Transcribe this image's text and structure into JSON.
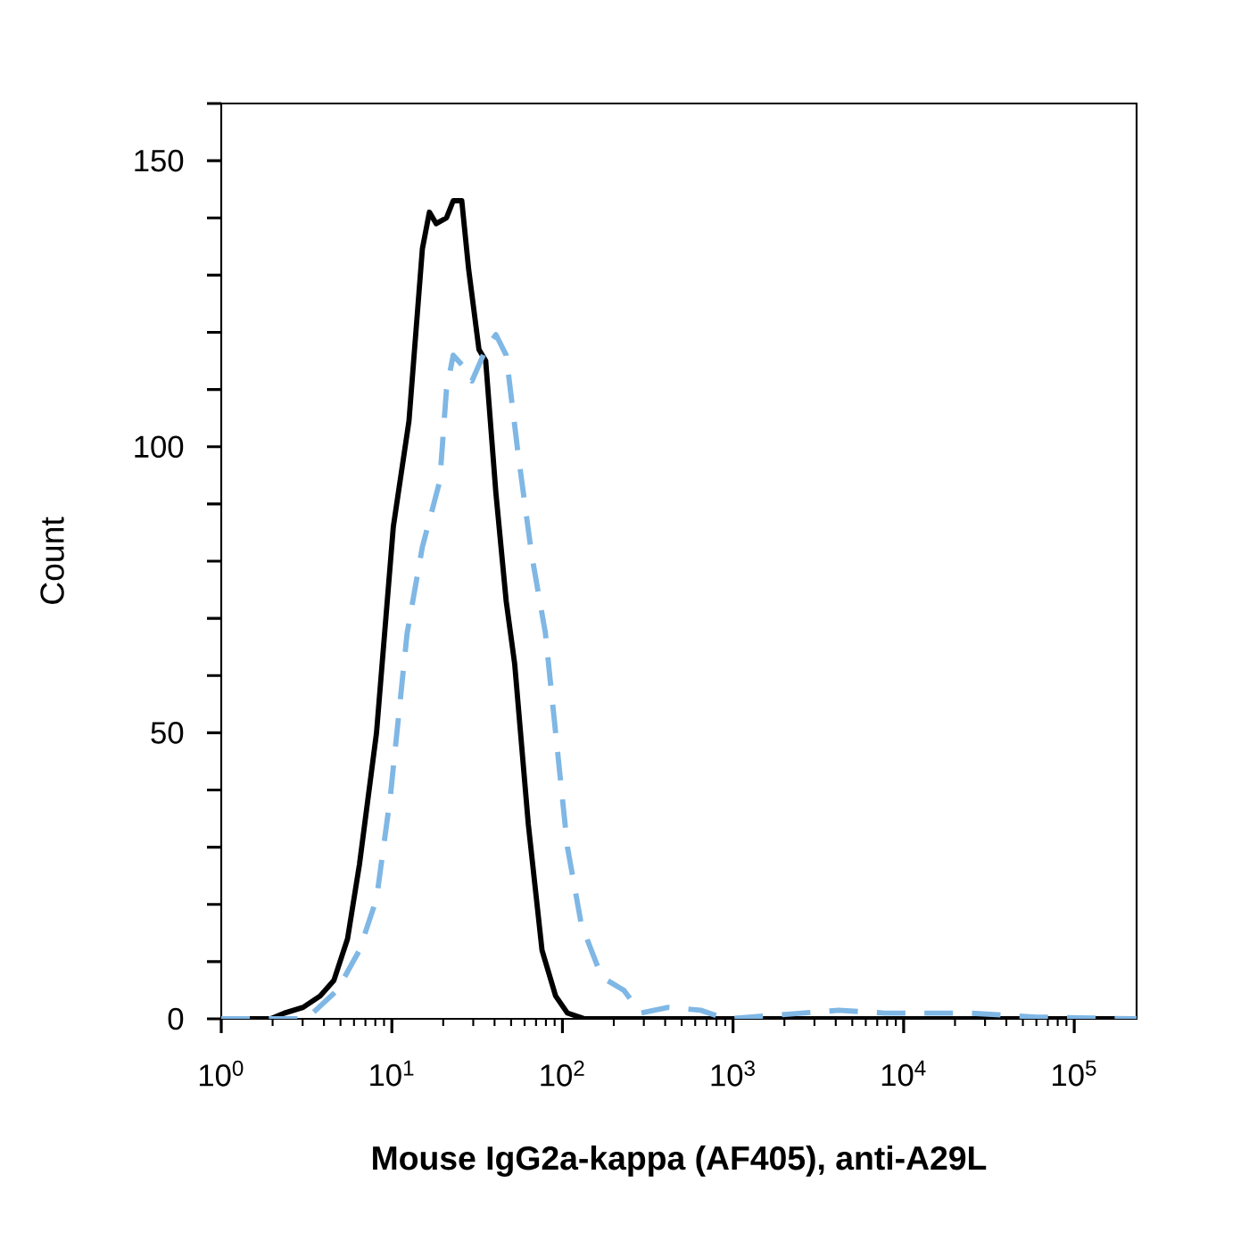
{
  "chart_data": {
    "type": "line",
    "xlabel": "Mouse IgG2a-kappa (AF405), anti-A29L",
    "ylabel": "Count",
    "log": "x",
    "xlim": [
      1,
      232000
    ],
    "ylim": [
      0,
      160
    ],
    "xticks": [
      {
        "value": 1,
        "label": "10$^{0}$"
      },
      {
        "value": 10,
        "label": "10$^{1}$"
      },
      {
        "value": 100,
        "label": "10$^{2}$"
      },
      {
        "value": 1000,
        "label": "10$^{3}$"
      },
      {
        "value": 10000,
        "label": "10$^{4}$"
      },
      {
        "value": 100000,
        "label": "10$^{5}$"
      }
    ],
    "yticks": [
      0,
      {
        "value": 10,
        "label": null
      },
      {
        "value": 20,
        "label": null
      },
      {
        "value": 30,
        "label": null
      },
      {
        "value": 40,
        "label": null
      },
      50,
      {
        "value": 60,
        "label": null
      },
      {
        "value": 70,
        "label": null
      },
      {
        "value": 80,
        "label": null
      },
      {
        "value": 90,
        "label": null
      },
      100,
      {
        "value": 110,
        "label": null
      },
      {
        "value": 120,
        "label": null
      },
      {
        "value": 130,
        "label": null
      },
      {
        "value": 140,
        "label": null
      },
      150,
      {
        "value": 160,
        "label": null
      }
    ],
    "series": [
      {
        "color": "#000000",
        "line_style": "solid",
        "x": [
          1,
          1.95,
          2.34,
          3.02,
          3.8,
          4.57,
          5.5,
          6.46,
          8.13,
          10.2,
          12.6,
          15.1,
          16.6,
          18.2,
          20.9,
          22.9,
          25.7,
          28.2,
          32.4,
          35.5,
          40.7,
          46.8,
          52.5,
          63.1,
          75.9,
          91.2,
          107,
          135,
          232000
        ],
        "values": [
          0,
          0,
          1,
          2,
          4,
          6.7,
          14,
          27,
          50,
          86,
          104.5,
          134.6,
          141,
          139,
          140,
          143,
          143,
          131,
          117,
          115,
          92,
          73,
          62,
          34,
          12,
          4,
          1,
          0,
          0
        ]
      },
      {
        "color": "#7fb7e5",
        "line_style": "dashed",
        "x": [
          1,
          3.16,
          4.79,
          6.46,
          8.13,
          9.77,
          12.3,
          15.1,
          19.1,
          20.9,
          22.9,
          26.3,
          29.5,
          35.5,
          40.7,
          46.8,
          55,
          66.1,
          79.4,
          91.2,
          107,
          129,
          170,
          229,
          288,
          417,
          646,
          912,
          1700,
          4170,
          7760,
          24500,
          60300,
          232000
        ],
        "values": [
          0,
          0,
          5,
          12,
          21,
          38.5,
          67.5,
          82.5,
          94,
          110,
          116,
          114,
          111.5,
          117,
          119.6,
          116,
          98.7,
          81,
          67.5,
          50,
          30,
          16.5,
          7.3,
          5,
          1,
          2,
          1.5,
          0,
          0.6,
          1.5,
          1,
          1,
          0.3,
          0
        ]
      }
    ]
  }
}
